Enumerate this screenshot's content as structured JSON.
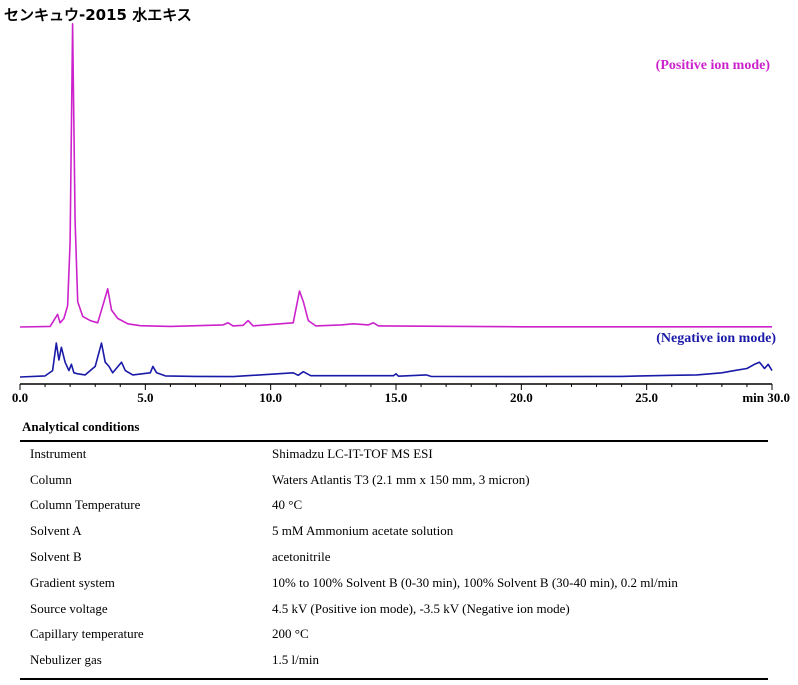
{
  "title": "センキュウ-2015 水エキス",
  "chart_data": {
    "type": "line",
    "title": "センキュウ-2015 水エキス",
    "xlabel": "min",
    "xlim": [
      0,
      30
    ],
    "x_ticks": [
      "0.0",
      "5.0",
      "10.0",
      "15.0",
      "20.0",
      "25.0",
      "min 30.0"
    ],
    "series": [
      {
        "name": "(Positive ion mode)",
        "color": "#cc22cc",
        "baseline": 0,
        "points": [
          [
            0.0,
            0
          ],
          [
            1.2,
            0.3
          ],
          [
            1.5,
            6
          ],
          [
            1.6,
            2
          ],
          [
            1.75,
            4
          ],
          [
            1.9,
            10
          ],
          [
            2.0,
            40
          ],
          [
            2.1,
            143
          ],
          [
            2.2,
            50
          ],
          [
            2.3,
            12
          ],
          [
            2.5,
            5
          ],
          [
            2.8,
            3
          ],
          [
            3.1,
            2
          ],
          [
            3.35,
            12
          ],
          [
            3.5,
            18
          ],
          [
            3.65,
            8
          ],
          [
            3.9,
            4
          ],
          [
            4.3,
            1.5
          ],
          [
            4.8,
            0.6
          ],
          [
            6.0,
            0.3
          ],
          [
            8.1,
            1
          ],
          [
            8.3,
            2
          ],
          [
            8.5,
            0.5
          ],
          [
            8.9,
            0.8
          ],
          [
            9.1,
            3
          ],
          [
            9.3,
            0.5
          ],
          [
            10.9,
            2
          ],
          [
            11.15,
            17
          ],
          [
            11.3,
            12
          ],
          [
            11.5,
            3
          ],
          [
            11.8,
            0.5
          ],
          [
            12.8,
            1
          ],
          [
            13.3,
            1.5
          ],
          [
            13.9,
            1
          ],
          [
            14.1,
            2
          ],
          [
            14.3,
            0.5
          ],
          [
            20.0,
            0.1
          ],
          [
            30.0,
            0.1
          ]
        ]
      },
      {
        "name": "(Negative ion mode)",
        "color": "#1a1aa8",
        "baseline": 0,
        "points": [
          [
            0.0,
            0
          ],
          [
            1.0,
            0.5
          ],
          [
            1.3,
            3
          ],
          [
            1.45,
            16
          ],
          [
            1.55,
            8
          ],
          [
            1.65,
            14
          ],
          [
            1.8,
            7
          ],
          [
            1.95,
            3
          ],
          [
            2.05,
            6
          ],
          [
            2.15,
            2
          ],
          [
            2.3,
            1.5
          ],
          [
            2.6,
            1
          ],
          [
            3.0,
            5
          ],
          [
            3.25,
            16
          ],
          [
            3.4,
            7
          ],
          [
            3.55,
            5
          ],
          [
            3.7,
            2
          ],
          [
            4.05,
            7
          ],
          [
            4.2,
            3
          ],
          [
            4.5,
            1
          ],
          [
            5.2,
            2
          ],
          [
            5.3,
            5
          ],
          [
            5.45,
            2
          ],
          [
            5.8,
            0.5
          ],
          [
            7.0,
            0.3
          ],
          [
            8.5,
            0.2
          ],
          [
            10.9,
            2
          ],
          [
            11.1,
            0.8
          ],
          [
            11.3,
            2.5
          ],
          [
            11.6,
            0.6
          ],
          [
            14.9,
            0.6
          ],
          [
            15.0,
            1.5
          ],
          [
            15.1,
            0.4
          ],
          [
            16.2,
            1
          ],
          [
            16.4,
            0.3
          ],
          [
            20.0,
            0.2
          ],
          [
            24.0,
            0.3
          ],
          [
            26.0,
            0.8
          ],
          [
            27.0,
            1
          ],
          [
            28.0,
            2
          ],
          [
            28.5,
            3
          ],
          [
            29.0,
            4
          ],
          [
            29.3,
            6
          ],
          [
            29.5,
            7
          ],
          [
            29.7,
            4
          ],
          [
            29.85,
            6
          ],
          [
            30.0,
            3
          ]
        ]
      }
    ],
    "grid": false,
    "legend": "right, inline labels"
  },
  "conditions": {
    "heading": "Analytical conditions",
    "rows": [
      {
        "key": "Instrument",
        "value": "Shimadzu LC-IT-TOF MS ESI"
      },
      {
        "key": "Column",
        "value": "Waters Atlantis T3 (2.1 mm x 150 mm, 3 micron)"
      },
      {
        "key": "Column Temperature",
        "value": "40 °C"
      },
      {
        "key": "Solvent A",
        "value": "5 mM Ammonium acetate solution"
      },
      {
        "key": "Solvent B",
        "value": "acetonitrile"
      },
      {
        "key": "Gradient system",
        "value": "10% to 100% Solvent B (0-30 min), 100% Solvent B (30-40 min), 0.2 ml/min"
      },
      {
        "key": "Source voltage",
        "value": "4.5 kV (Positive ion mode), -3.5 kV (Negative ion mode)"
      },
      {
        "key": "Capillary temperature",
        "value": "200 °C"
      },
      {
        "key": "Nebulizer gas",
        "value": "1.5 l/min"
      }
    ]
  }
}
